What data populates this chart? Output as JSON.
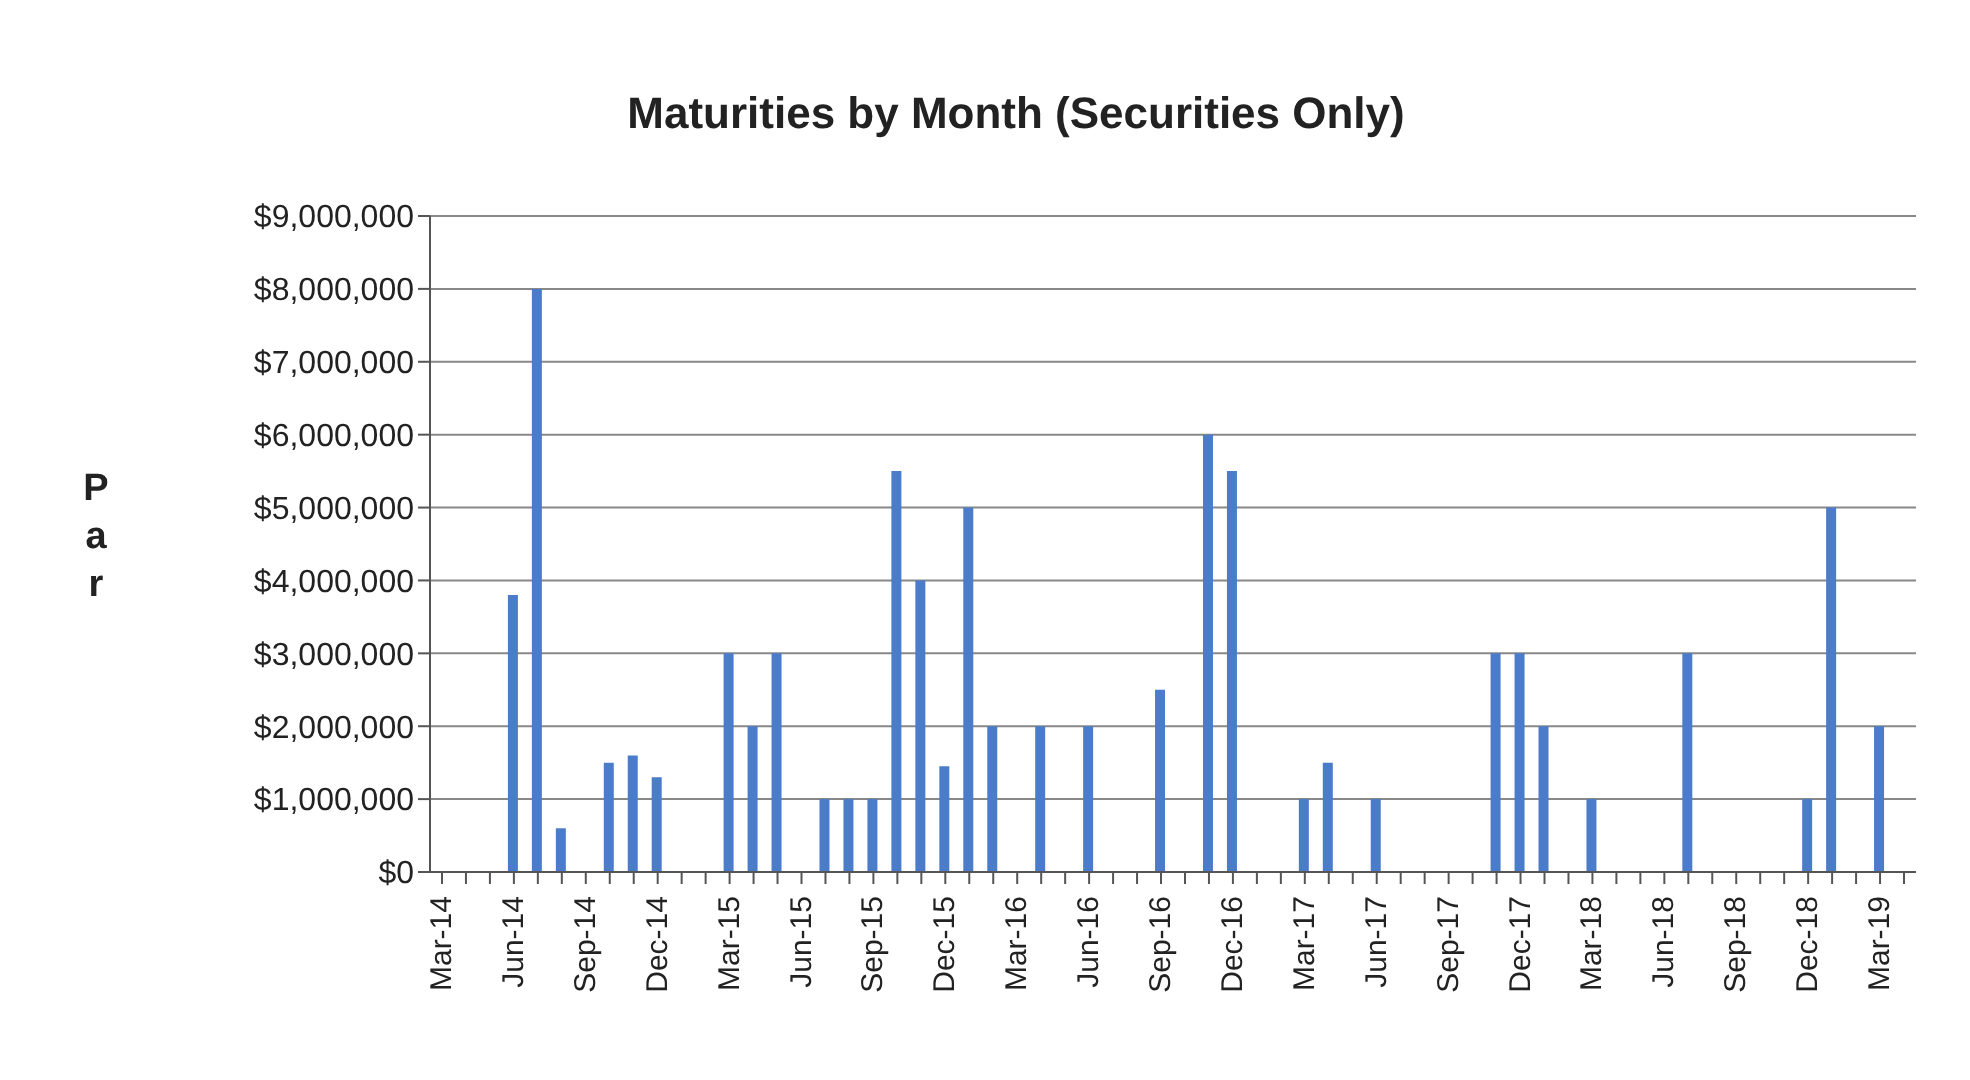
{
  "chart_data": {
    "type": "bar",
    "title": "Maturities by Month (Securities Only)",
    "ylabel": "Par",
    "categories": [
      "Mar-14",
      null,
      null,
      "Jun-14",
      null,
      null,
      "Sep-14",
      null,
      null,
      "Dec-14",
      null,
      null,
      "Mar-15",
      null,
      null,
      "Jun-15",
      null,
      null,
      "Sep-15",
      null,
      null,
      "Dec-15",
      null,
      null,
      "Mar-16",
      null,
      null,
      "Jun-16",
      null,
      null,
      "Sep-16",
      null,
      null,
      "Dec-16",
      null,
      null,
      "Mar-17",
      null,
      null,
      "Jun-17",
      null,
      null,
      "Sep-17",
      null,
      null,
      "Dec-17",
      null,
      null,
      "Mar-18",
      null,
      null,
      "Jun-18",
      null,
      null,
      "Sep-18",
      null,
      null,
      "Dec-18",
      null,
      null,
      "Mar-19",
      null
    ],
    "values": [
      0,
      0,
      0,
      3800000,
      8000000,
      600000,
      0,
      1500000,
      1600000,
      1300000,
      0,
      0,
      3000000,
      2000000,
      3000000,
      0,
      1000000,
      1000000,
      1000000,
      5500000,
      4000000,
      1450000,
      5000000,
      2000000,
      0,
      2000000,
      0,
      2000000,
      0,
      0,
      2500000,
      0,
      6000000,
      5500000,
      0,
      0,
      1000000,
      1500000,
      0,
      1000000,
      0,
      0,
      0,
      0,
      3000000,
      3000000,
      2000000,
      0,
      1000000,
      0,
      0,
      0,
      3000000,
      0,
      0,
      0,
      0,
      1000000,
      5000000,
      0,
      2000000,
      0
    ],
    "color": "#4a7cc9",
    "ylim": [
      0,
      9000000
    ],
    "yticks": [
      {
        "value": 0,
        "label": "$0"
      },
      {
        "value": 1000000,
        "label": "$1,000,000"
      },
      {
        "value": 2000000,
        "label": "$2,000,000"
      },
      {
        "value": 3000000,
        "label": "$3,000,000"
      },
      {
        "value": 4000000,
        "label": "$4,000,000"
      },
      {
        "value": 5000000,
        "label": "$5,000,000"
      },
      {
        "value": 6000000,
        "label": "$6,000,000"
      },
      {
        "value": 7000000,
        "label": "$7,000,000"
      },
      {
        "value": 8000000,
        "label": "$8,000,000"
      },
      {
        "value": 9000000,
        "label": "$9,000,000"
      }
    ],
    "grid": "y",
    "legend": false
  }
}
